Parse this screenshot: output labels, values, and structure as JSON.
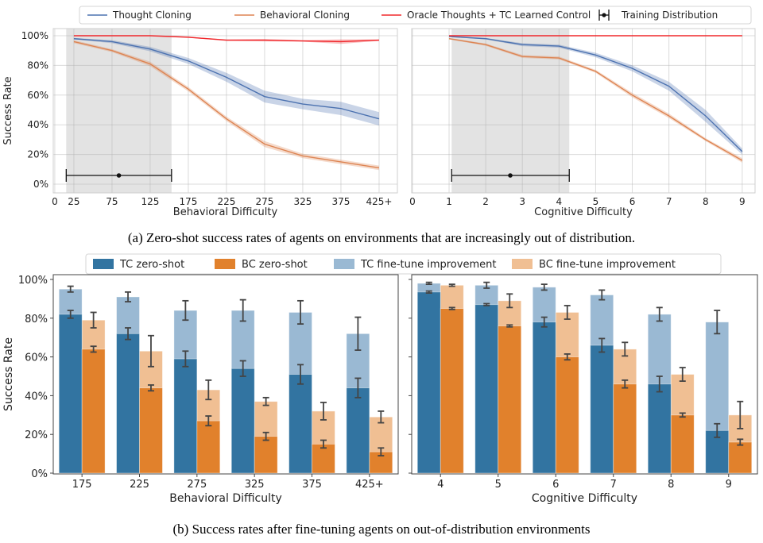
{
  "colors": {
    "thought_cloning": "#4c72b0",
    "behavioral_cloning": "#dd8452",
    "oracle": "#f0282c",
    "training_region": "#e3e3e3",
    "tc_zero_shot": "#3274a1",
    "bc_zero_shot": "#e1812c",
    "tc_fine_tune": "#9ab9d3",
    "bc_fine_tune": "#f0bf93"
  },
  "legend_top": [
    "Thought Cloning",
    "Behavioral Cloning",
    "Oracle Thoughts + TC Learned Control",
    "Training Distribution"
  ],
  "legend_bottom": [
    "TC zero-shot",
    "BC zero-shot",
    "TC fine-tune improvement",
    "BC fine-tune improvement"
  ],
  "caption_a": "(a) Zero-shot success rates of agents on environments that are increasingly out of distribution.",
  "caption_b": "(b) Success rates after fine-tuning agents on out-of-distribution environments",
  "chart_data": [
    {
      "type": "line",
      "panel": "a-left",
      "xlabel": "Behavioral Difficulty",
      "ylabel": "Success Rate",
      "x": [
        25,
        75,
        125,
        175,
        225,
        275,
        325,
        375,
        425
      ],
      "xticks": [
        0,
        25,
        75,
        125,
        175,
        225,
        275,
        325,
        375,
        425
      ],
      "xtick_labels": [
        "0",
        "25",
        "75",
        "125",
        "175",
        "225",
        "275",
        "325",
        "375",
        "425+"
      ],
      "yticks": [
        0,
        20,
        40,
        60,
        80,
        100
      ],
      "ytick_labels": [
        "0%",
        "20%",
        "40%",
        "60%",
        "80%",
        "100%"
      ],
      "ylim": [
        0,
        104
      ],
      "grid": true,
      "training_distribution": {
        "low": 15,
        "mean": 84,
        "high": 153
      },
      "series": [
        {
          "name": "Thought Cloning",
          "values": [
            98,
            96,
            91,
            83,
            72,
            59,
            54,
            51,
            44
          ],
          "ci": [
            0.5,
            1,
            1.5,
            2,
            3,
            4,
            3.5,
            4.5,
            4.5
          ]
        },
        {
          "name": "Behavioral Cloning",
          "values": [
            96,
            90,
            81,
            64,
            44,
            27,
            19,
            15,
            11
          ],
          "ci": [
            1,
            1,
            1.5,
            1.5,
            1.5,
            2,
            1.5,
            1.5,
            1.5
          ]
        },
        {
          "name": "Oracle Thoughts + TC Learned Control",
          "values": [
            100,
            100,
            100,
            99,
            97,
            97,
            96.5,
            96,
            97
          ],
          "ci": [
            0.3,
            0.3,
            0.3,
            0.3,
            0.5,
            0.8,
            0.5,
            1.5,
            0.5
          ]
        }
      ]
    },
    {
      "type": "line",
      "panel": "a-right",
      "xlabel": "Cognitive Difficulty",
      "x": [
        1,
        2,
        3,
        4,
        5,
        6,
        7,
        8,
        9
      ],
      "xticks": [
        0,
        1,
        2,
        3,
        4,
        5,
        6,
        7,
        8,
        9
      ],
      "xtick_labels": [
        "0",
        "1",
        "2",
        "3",
        "4",
        "5",
        "6",
        "7",
        "8",
        "9"
      ],
      "yticks": [
        0,
        20,
        40,
        60,
        80,
        100
      ],
      "ylim": [
        0,
        104
      ],
      "grid": true,
      "training_distribution": {
        "low": 1.07,
        "mean": 2.67,
        "high": 4.28
      },
      "series": [
        {
          "name": "Thought Cloning",
          "values": [
            99.5,
            98,
            94,
            93,
            87,
            78,
            66,
            46,
            22
          ],
          "ci": [
            0.3,
            0.5,
            1,
            1,
            1.5,
            2,
            3,
            4,
            2
          ]
        },
        {
          "name": "Behavioral Cloning",
          "values": [
            98,
            94,
            86,
            85,
            76,
            60,
            46,
            30,
            16
          ],
          "ci": [
            0.5,
            0.8,
            1,
            1,
            1,
            1.5,
            1.5,
            1,
            1.5
          ]
        },
        {
          "name": "Oracle Thoughts + TC Learned Control",
          "values": [
            100,
            100,
            100,
            100,
            100,
            100,
            100,
            100,
            100
          ],
          "ci": [
            0.2,
            0.2,
            0.2,
            0.2,
            0.2,
            0.2,
            0.2,
            0.2,
            0.2
          ]
        }
      ]
    },
    {
      "type": "bar",
      "panel": "b-left",
      "xlabel": "Behavioral Difficulty",
      "ylabel": "Success Rate",
      "categories": [
        "175",
        "225",
        "275",
        "325",
        "375",
        "425+"
      ],
      "yticks": [
        0,
        20,
        40,
        60,
        80,
        100
      ],
      "ytick_labels": [
        "0%",
        "20%",
        "40%",
        "60%",
        "80%",
        "100%"
      ],
      "ylim": [
        0,
        100
      ],
      "series": [
        {
          "name": "TC zero-shot",
          "values": [
            82,
            72,
            59,
            54,
            51,
            44
          ],
          "err": [
            2,
            3,
            4,
            4,
            5,
            5
          ]
        },
        {
          "name": "BC zero-shot",
          "values": [
            64,
            44,
            27,
            19,
            15,
            11
          ],
          "err": [
            1.5,
            1.5,
            2.5,
            2,
            2,
            2
          ]
        },
        {
          "name": "TC fine-tune improvement",
          "values": [
            95,
            91,
            84,
            84,
            83,
            72
          ],
          "err": [
            1.5,
            2.5,
            5,
            5.5,
            6,
            8.5
          ]
        },
        {
          "name": "BC fine-tune improvement",
          "values": [
            79,
            63,
            43,
            37,
            32,
            29
          ],
          "err": [
            4,
            8,
            5,
            2,
            4.5,
            3
          ]
        }
      ]
    },
    {
      "type": "bar",
      "panel": "b-right",
      "xlabel": "Cognitive Difficulty",
      "categories": [
        "4",
        "5",
        "6",
        "7",
        "8",
        "9"
      ],
      "yticks": [
        0,
        20,
        40,
        60,
        80,
        100
      ],
      "ylim": [
        0,
        100
      ],
      "series": [
        {
          "name": "TC zero-shot",
          "values": [
            93.5,
            87,
            78,
            66,
            46,
            22
          ],
          "err": [
            0.5,
            0.5,
            2.5,
            3.5,
            4,
            3.5
          ]
        },
        {
          "name": "BC zero-shot",
          "values": [
            85,
            76,
            60,
            46,
            30,
            16
          ],
          "err": [
            0.5,
            0.5,
            1.5,
            2,
            1,
            1.5
          ]
        },
        {
          "name": "TC fine-tune improvement",
          "values": [
            98,
            97,
            96,
            92,
            82,
            78
          ],
          "err": [
            0.5,
            1.5,
            1.5,
            2.5,
            3.5,
            6
          ]
        },
        {
          "name": "BC fine-tune improvement",
          "values": [
            97,
            89,
            83,
            64,
            51,
            30
          ],
          "err": [
            0.5,
            3.5,
            3.5,
            3.5,
            3.5,
            7
          ]
        }
      ]
    }
  ]
}
